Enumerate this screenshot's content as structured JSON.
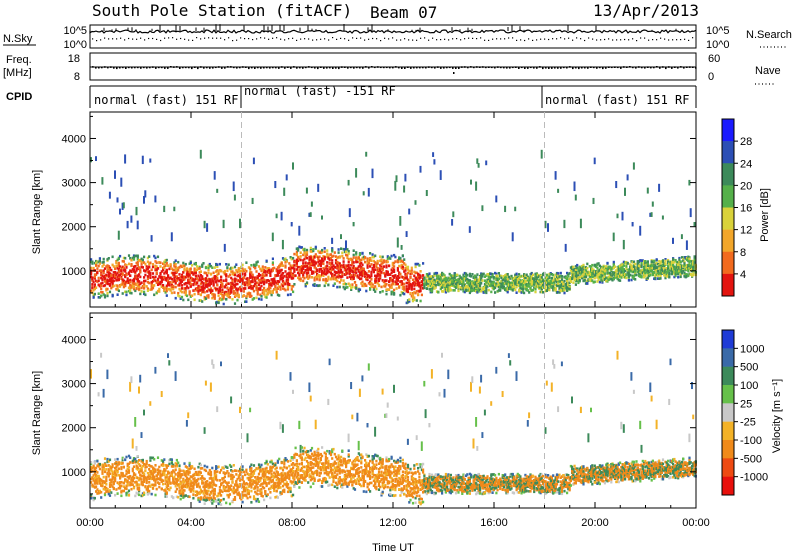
{
  "header": {
    "station": "South Pole Station (fitACF)",
    "beam": "Beam 07",
    "date": "13/Apr/2013"
  },
  "side_labels": {
    "nsky": "N.Sky",
    "freq": "Freq.",
    "freq_unit": "[MHz]",
    "cpid": "CPID",
    "nsearch": "N.Search",
    "nave": "Nave"
  },
  "mini_ticks": {
    "noise_left_top": "10^5",
    "noise_left_bot": "10^0",
    "noise_right_top": "10^5",
    "noise_right_bot": "10^0",
    "freq_top": "18",
    "freq_bot": "8",
    "nave_top": "60",
    "nave_bot": "0"
  },
  "cpid_segments": [
    {
      "label": "normal (fast) 151 RF",
      "start_h": 0,
      "end_h": 6
    },
    {
      "label": "normal (fast) -151 RF",
      "start_h": 6,
      "end_h": 18
    },
    {
      "label": "normal (fast) 151 RF",
      "start_h": 18,
      "end_h": 24
    }
  ],
  "chart_data": [
    {
      "type": "heatmap",
      "name": "power-panel",
      "ylabel": "Slant Range [km]",
      "ylim": [
        180,
        4600
      ],
      "yticks": [
        "1000",
        "2000",
        "3000",
        "4000"
      ],
      "xlim": [
        0,
        24
      ],
      "colorbar_label": "Power [dB]",
      "colorbar_ticks": [
        "4",
        "8",
        "12",
        "16",
        "20",
        "24",
        "28"
      ],
      "colors": [
        "#1b1bff",
        "#2c4fb5",
        "#3c8a5a",
        "#55b04a",
        "#d9d23a",
        "#f2a62a",
        "#f26a1e",
        "#e3140f"
      ]
    },
    {
      "type": "heatmap",
      "name": "velocity-panel",
      "ylabel": "Slant Range [km]",
      "ylim": [
        180,
        4600
      ],
      "yticks": [
        "1000",
        "2000",
        "3000",
        "4000"
      ],
      "xlim": [
        0,
        24
      ],
      "xlabel": "Time UT",
      "xticks": [
        "00:00",
        "04:00",
        "08:00",
        "12:00",
        "16:00",
        "20:00",
        "00:00"
      ],
      "colorbar_label": "Velocity [m s⁻¹]",
      "colorbar_ticks": [
        "1000",
        "500",
        "100",
        "25",
        "-25",
        "-100",
        "-500",
        "-1000"
      ],
      "colors": [
        "#1f3bd6",
        "#3a6aa8",
        "#3c8a5a",
        "#66c04a",
        "#c8c8c8",
        "#f3b227",
        "#f08a1a",
        "#ee4a12",
        "#e8100c"
      ]
    }
  ]
}
